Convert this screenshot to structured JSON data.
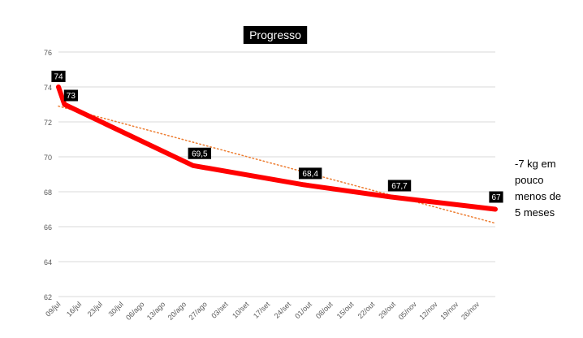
{
  "chart_data": {
    "type": "line",
    "title": "Progresso",
    "xlabel": "",
    "ylabel": "",
    "ylim": [
      62,
      76
    ],
    "yticks": [
      62,
      64,
      66,
      68,
      70,
      72,
      74,
      76
    ],
    "grid": true,
    "x_tick_labels": [
      "09/jul",
      "16/jul",
      "23/jul",
      "30/jul",
      "06/ago",
      "13/ago",
      "20/ago",
      "27/ago",
      "03/set",
      "10/set",
      "17/set",
      "24/set",
      "01/out",
      "08/out",
      "15/out",
      "22/out",
      "29/out",
      "05/nov",
      "12/nov",
      "19/nov",
      "26/nov"
    ],
    "x_range": [
      "2019-07-09",
      "2019-12-02"
    ],
    "series": [
      {
        "color": "#ff0000",
        "points": [
          {
            "x": "2019-07-09",
            "y": 74,
            "label": "74"
          },
          {
            "x": "2019-07-11",
            "y": 73,
            "label": "73"
          },
          {
            "x": "2019-08-23",
            "y": 69.5,
            "label": "69,5"
          },
          {
            "x": "2019-09-29",
            "y": 68.4,
            "label": "68,4"
          },
          {
            "x": "2019-10-28",
            "y": 67.7,
            "label": "67,7"
          },
          {
            "x": "2019-12-02",
            "y": 67,
            "label": "67"
          }
        ]
      }
    ],
    "trendline": {
      "color": "#ed7d31",
      "style": "dotted",
      "type": "linear",
      "start": 72.9,
      "end": 66.2
    }
  },
  "annotation": {
    "lines": [
      "-7 kg em",
      "pouco",
      "menos de",
      "5 meses"
    ]
  }
}
